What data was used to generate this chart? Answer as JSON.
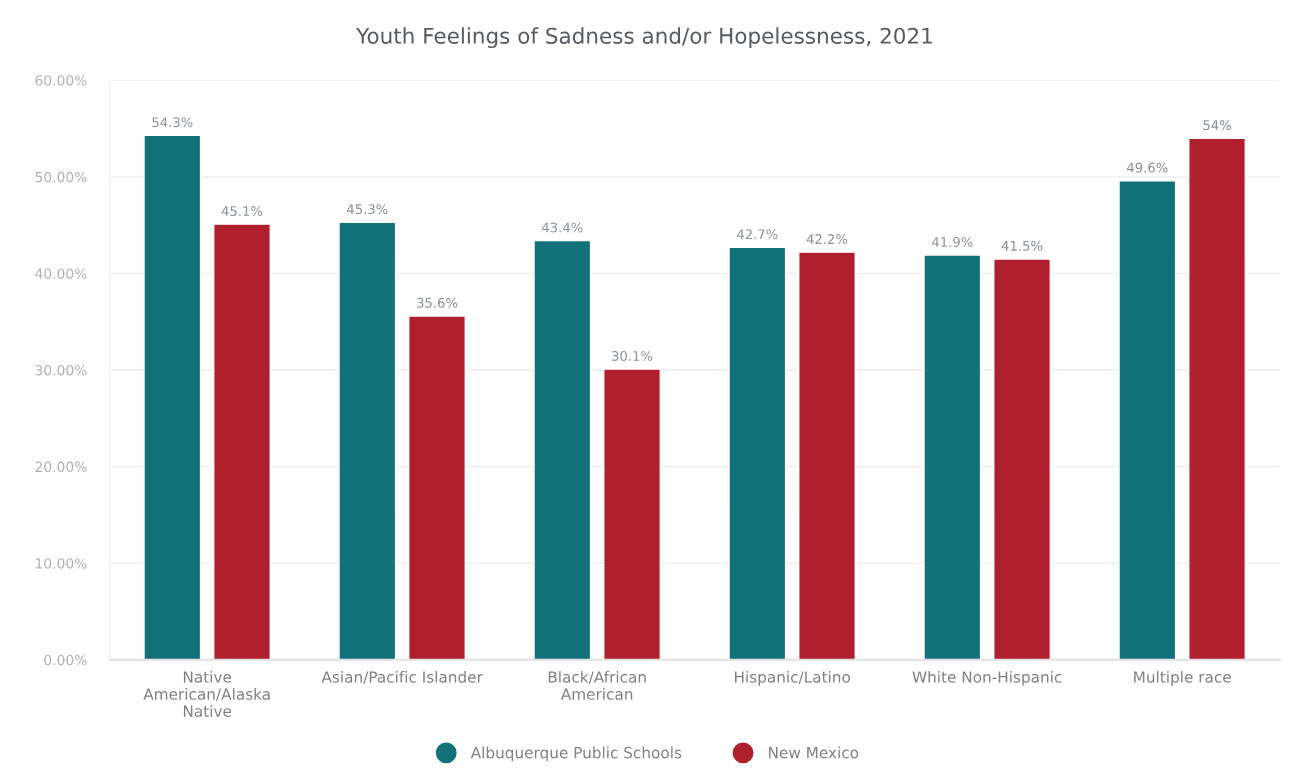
{
  "chart_data": {
    "type": "bar",
    "title": "Youth Feelings of Sadness and/or Hopelessness, 2021",
    "categories": [
      "Native\nAmerican/Alaska\nNative",
      "Asian/Pacific Islander",
      "Black/African\nAmerican",
      "Hispanic/Latino",
      "White Non-Hispanic",
      "Multiple race"
    ],
    "series": [
      {
        "name": "Albuquerque Public Schools",
        "color": "#13717a",
        "values": [
          54.3,
          45.3,
          43.4,
          42.7,
          41.9,
          49.6
        ],
        "value_labels": [
          "54.3%",
          "45.3%",
          "43.4%",
          "42.7%",
          "41.9%",
          "49.6%"
        ]
      },
      {
        "name": "New Mexico",
        "color": "#b01f2e",
        "values": [
          45.1,
          35.6,
          30.1,
          42.2,
          41.5,
          54
        ],
        "value_labels": [
          "45.1%",
          "35.6%",
          "30.1%",
          "42.2%",
          "41.5%",
          "54%"
        ]
      }
    ],
    "ylim": [
      0,
      60
    ],
    "yticks": [
      {
        "value": 0,
        "label": "0.00%"
      },
      {
        "value": 10,
        "label": "10.00%"
      },
      {
        "value": 20,
        "label": "20.00%"
      },
      {
        "value": 30,
        "label": "30.00%"
      },
      {
        "value": 40,
        "label": "40.00%"
      },
      {
        "value": 50,
        "label": "50.00%"
      },
      {
        "value": 60,
        "label": "60.00%"
      }
    ],
    "grid": "y",
    "legend": "bottom"
  }
}
